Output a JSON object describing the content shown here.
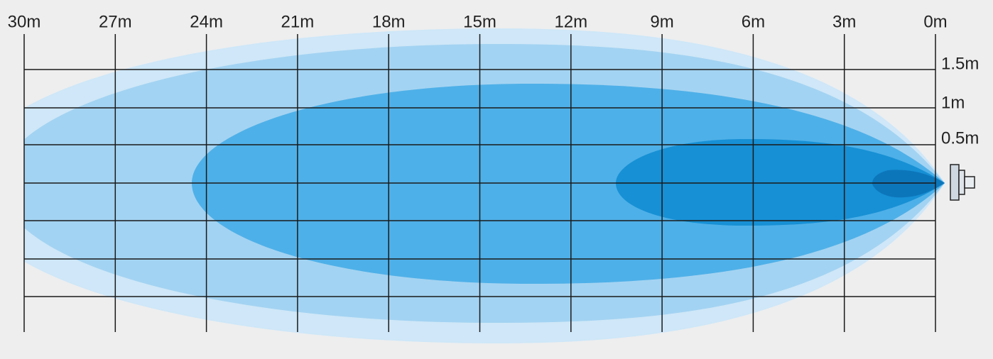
{
  "x_axis": {
    "labels": [
      "30m",
      "27m",
      "24m",
      "21m",
      "18m",
      "15m",
      "12m",
      "9m",
      "6m",
      "3m",
      "0m"
    ]
  },
  "y_axis": {
    "labels": [
      "1.5m",
      "1m",
      "0.5m"
    ]
  }
}
